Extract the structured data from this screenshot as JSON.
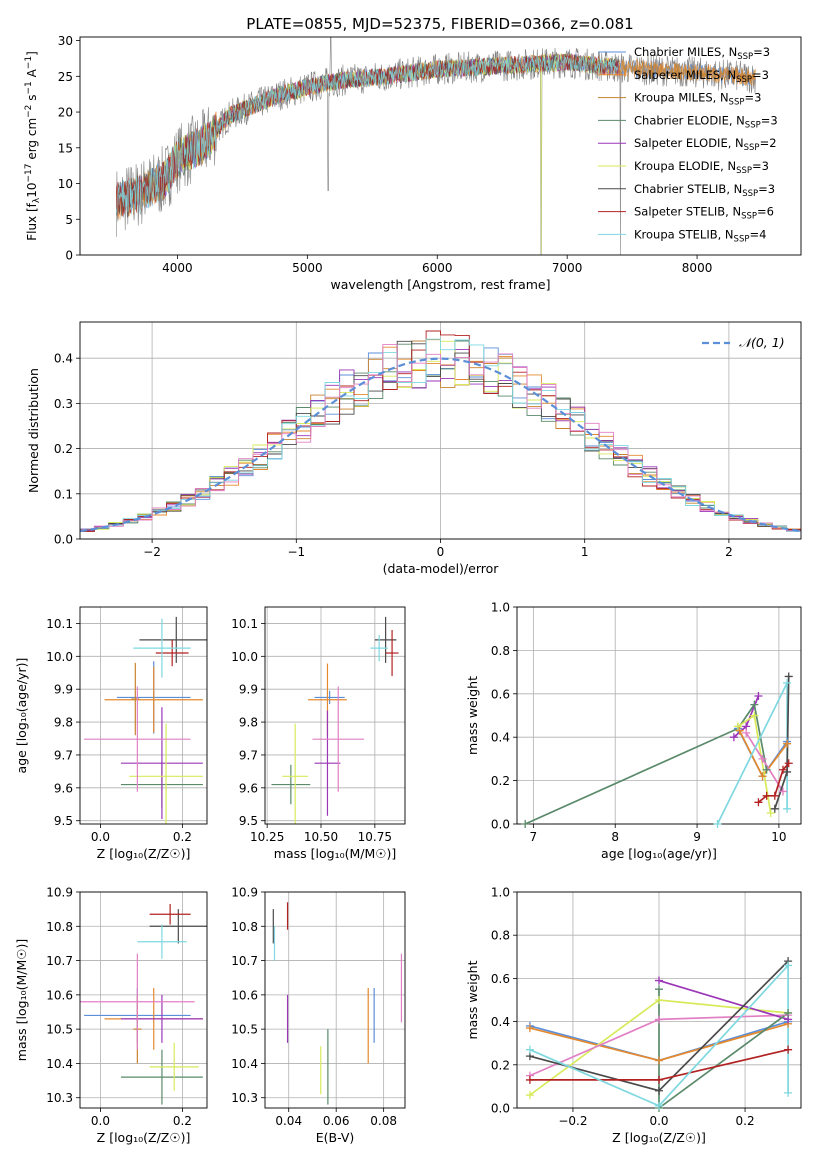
{
  "figure_title": "PLATE=0855, MJD=52375, FIBERID=0366, z=0.081",
  "colors": {
    "Chabrier MILES": "#5b8fd8",
    "Salpeter MILES": "#e4892e",
    "Kroupa MILES": "#c9822d",
    "Chabrier ELODIE": "#5a8a6a",
    "Salpeter ELODIE": "#9b36b7",
    "Kroupa ELODIE": "#d8ea5a",
    "Chabrier STELIB": "#4a4a4a",
    "Salpeter STELIB": "#b22222",
    "Kroupa STELIB": "#7fd8e0",
    "Pink": "#e27fc4",
    "data": "#808080",
    "normal": "#5b8fd8"
  },
  "chart_data": [
    {
      "id": "spectrum",
      "type": "line",
      "title": "PLATE=0855, MJD=52375, FIBERID=0366, z=0.081",
      "xlabel": "wavelength [Angstrom, rest frame]",
      "ylabel_main": "Flux [f",
      "ylabel_sub": "λ",
      "ylabel_mid": "10",
      "ylabel_sup1": "−17",
      "ylabel_mid2": " erg cm",
      "ylabel_sup2": "−2",
      "ylabel_mid3": " s",
      "ylabel_sup3": "−1",
      "ylabel_mid4": " A",
      "ylabel_sup4": "−1",
      "ylabel_end": "]",
      "xlim": [
        3250,
        8800
      ],
      "ylim": [
        0,
        30.5
      ],
      "xticks": [
        4000,
        5000,
        6000,
        7000,
        8000
      ],
      "yticks": [
        0,
        5,
        10,
        15,
        20,
        25,
        30
      ],
      "continuum_knots": [
        [
          3530,
          7.5
        ],
        [
          3700,
          8.5
        ],
        [
          3900,
          10.5
        ],
        [
          4000,
          13.5
        ],
        [
          4200,
          15.5
        ],
        [
          4400,
          19.5
        ],
        [
          4800,
          22.5
        ],
        [
          5200,
          24.3
        ],
        [
          5600,
          25.0
        ],
        [
          6000,
          26.0
        ],
        [
          6500,
          26.5
        ],
        [
          7000,
          27.0
        ],
        [
          7400,
          26.2
        ],
        [
          8000,
          25.5
        ],
        [
          8450,
          24.8
        ]
      ],
      "legend": [
        {
          "name": "Chabrier MILES",
          "nssp": "3"
        },
        {
          "name": "Salpeter MILES",
          "nssp": "3"
        },
        {
          "name": "Kroupa MILES",
          "nssp": "3"
        },
        {
          "name": "Chabrier ELODIE",
          "nssp": "3"
        },
        {
          "name": "Salpeter ELODIE",
          "nssp": "2"
        },
        {
          "name": "Kroupa ELODIE",
          "nssp": "3"
        },
        {
          "name": "Chabrier STELIB",
          "nssp": "3"
        },
        {
          "name": "Salpeter STELIB",
          "nssp": "6"
        },
        {
          "name": "Kroupa STELIB",
          "nssp": "4"
        }
      ],
      "legend_suffix": ", N",
      "legend_sub": "SSP",
      "legend_eq": "="
    },
    {
      "id": "residuals",
      "type": "line",
      "xlabel": "(data-model)/error",
      "ylabel": "Normed distribution",
      "xlim": [
        -2.5,
        2.5
      ],
      "ylim": [
        0,
        0.48
      ],
      "xticks": [
        -2,
        -1,
        0,
        1,
        2
      ],
      "yticks": [
        0.0,
        0.1,
        0.2,
        0.3,
        0.4
      ],
      "grid": true,
      "bin_width": 0.1,
      "legend": "𝒩(0, 1)",
      "legend_position": "top-right"
    },
    {
      "id": "age_vs_Z",
      "type": "scatter",
      "xlabel": "Z [log₁₀(Z/Z☉)]",
      "ylabel": "age  [log₁₀(age/yr)]",
      "xlim": [
        -0.05,
        0.26
      ],
      "ylim": [
        9.49,
        10.15
      ],
      "xticks": [
        0.0,
        0.2
      ],
      "yticks": [
        9.5,
        9.6,
        9.7,
        9.8,
        9.9,
        10.0,
        10.1
      ],
      "grid": true,
      "points": [
        {
          "series": "Chabrier MILES",
          "x": 0.13,
          "y": 9.875,
          "xerr": 0.09,
          "yerr": 0.11
        },
        {
          "series": "Salpeter MILES",
          "x": 0.13,
          "y": 9.868,
          "xerr": 0.12,
          "yerr": 0.1
        },
        {
          "series": "Kroupa MILES",
          "x": 0.085,
          "y": 9.87,
          "xerr": 0.01,
          "yerr": 0.11
        },
        {
          "series": "Chabrier ELODIE",
          "x": 0.15,
          "y": 9.61,
          "xerr": 0.1,
          "yerr": 0.07
        },
        {
          "series": "Salpeter ELODIE",
          "x": 0.15,
          "y": 9.675,
          "xerr": 0.1,
          "yerr": 0.17
        },
        {
          "series": "Kroupa ELODIE",
          "x": 0.16,
          "y": 9.635,
          "xerr": 0.09,
          "yerr": 0.16
        },
        {
          "series": "Chabrier STELIB",
          "x": 0.185,
          "y": 10.05,
          "xerr": 0.09,
          "yerr": 0.07
        },
        {
          "series": "Salpeter STELIB",
          "x": 0.175,
          "y": 10.01,
          "xerr": 0.04,
          "yerr": 0.04
        },
        {
          "series": "Kroupa STELIB",
          "x": 0.15,
          "y": 10.025,
          "xerr": 0.07,
          "yerr": 0.09
        },
        {
          "series": "Pink",
          "x": 0.09,
          "y": 9.748,
          "xerr": 0.13,
          "yerr": 0.16
        }
      ]
    },
    {
      "id": "age_vs_mass",
      "type": "scatter",
      "xlabel": "mass [log₁₀(M/M☉)]",
      "xlim": [
        10.24,
        10.89
      ],
      "ylim": [
        9.49,
        10.15
      ],
      "xticks": [
        10.25,
        10.5,
        10.75
      ],
      "yticks": [
        9.5,
        9.6,
        9.7,
        9.8,
        9.9,
        10.0,
        10.1
      ],
      "grid": true,
      "points": [
        {
          "series": "Chabrier MILES",
          "x": 10.54,
          "y": 9.875,
          "xerr": 0.07,
          "yerr": 0.02
        },
        {
          "series": "Salpeter MILES",
          "x": 10.53,
          "y": 9.868,
          "xerr": 0.09,
          "yerr": 0.11
        },
        {
          "series": "Chabrier ELODIE",
          "x": 10.36,
          "y": 9.61,
          "xerr": 0.09,
          "yerr": 0.06
        },
        {
          "series": "Salpeter ELODIE",
          "x": 10.53,
          "y": 9.675,
          "xerr": 0.06,
          "yerr": 0.16
        },
        {
          "series": "Kroupa ELODIE",
          "x": 10.38,
          "y": 9.635,
          "xerr": 0.06,
          "yerr": 0.16
        },
        {
          "series": "Chabrier STELIB",
          "x": 10.8,
          "y": 10.05,
          "xerr": 0.05,
          "yerr": 0.07
        },
        {
          "series": "Salpeter STELIB",
          "x": 10.83,
          "y": 10.01,
          "xerr": 0.03,
          "yerr": 0.07
        },
        {
          "series": "Kroupa STELIB",
          "x": 10.77,
          "y": 10.025,
          "xerr": 0.04,
          "yerr": 0.04
        },
        {
          "series": "Pink",
          "x": 10.58,
          "y": 9.748,
          "xerr": 0.12,
          "yerr": 0.16
        }
      ]
    },
    {
      "id": "weight_vs_age",
      "type": "line",
      "xlabel": "age  [log₁₀(age/yr)]",
      "ylabel": "mass weight",
      "xlim": [
        6.8,
        10.27
      ],
      "ylim": [
        0,
        1.0
      ],
      "xticks": [
        7,
        8,
        9,
        10
      ],
      "yticks": [
        0.0,
        0.2,
        0.4,
        0.6,
        0.8,
        1.0
      ],
      "grid": true,
      "series": [
        {
          "name": "Chabrier ELODIE",
          "x": [
            6.9,
            9.5,
            9.7,
            9.85
          ],
          "y": [
            0.0,
            0.44,
            0.55,
            0.25
          ]
        },
        {
          "name": "Salpeter ELODIE",
          "x": [
            9.45,
            9.6,
            9.75
          ],
          "y": [
            0.4,
            0.45,
            0.59
          ]
        },
        {
          "name": "Chabrier MILES",
          "x": [
            9.5,
            9.8,
            10.1
          ],
          "y": [
            0.44,
            0.22,
            0.38
          ]
        },
        {
          "name": "Salpeter MILES",
          "x": [
            9.52,
            9.8,
            10.1
          ],
          "y": [
            0.43,
            0.22,
            0.37
          ]
        },
        {
          "name": "Kroupa ELODIE",
          "x": [
            9.5,
            9.7,
            9.9
          ],
          "y": [
            0.45,
            0.5,
            0.05
          ]
        },
        {
          "name": "Pink",
          "x": [
            9.6,
            9.8,
            10.05
          ],
          "y": [
            0.42,
            0.3,
            0.15
          ]
        },
        {
          "name": "Kroupa STELIB",
          "x": [
            9.25,
            10.1,
            10.1
          ],
          "y": [
            0.0,
            0.65,
            0.07
          ]
        },
        {
          "name": "Chabrier STELIB",
          "x": [
            9.95,
            10.1,
            10.12
          ],
          "y": [
            0.07,
            0.24,
            0.68
          ]
        },
        {
          "name": "Salpeter STELIB",
          "x": [
            9.75,
            9.85,
            9.95,
            10.05,
            10.12
          ],
          "y": [
            0.1,
            0.13,
            0.13,
            0.25,
            0.28
          ]
        }
      ]
    },
    {
      "id": "mass_vs_Z",
      "type": "scatter",
      "xlabel": "Z [log₁₀(Z/Z☉)]",
      "ylabel": "mass [log₁₀(M/M☉)]",
      "xlim": [
        -0.05,
        0.26
      ],
      "ylim": [
        10.27,
        10.9
      ],
      "xticks": [
        0.0,
        0.2
      ],
      "yticks": [
        10.3,
        10.4,
        10.5,
        10.6,
        10.7,
        10.8,
        10.9
      ],
      "grid": true,
      "points": [
        {
          "series": "Chabrier MILES",
          "x": 0.09,
          "y": 10.54,
          "xerr": 0.13,
          "yerr": 0.08
        },
        {
          "series": "Salpeter MILES",
          "x": 0.13,
          "y": 10.53,
          "xerr": 0.12,
          "yerr": 0.09
        },
        {
          "series": "Kroupa MILES",
          "x": 0.09,
          "y": 10.5,
          "xerr": 0.01,
          "yerr": 0.1
        },
        {
          "series": "Chabrier ELODIE",
          "x": 0.15,
          "y": 10.36,
          "xerr": 0.1,
          "yerr": 0.08
        },
        {
          "series": "Salpeter ELODIE",
          "x": 0.15,
          "y": 10.53,
          "xerr": 0.1,
          "yerr": 0.07
        },
        {
          "series": "Kroupa ELODIE",
          "x": 0.18,
          "y": 10.39,
          "xerr": 0.06,
          "yerr": 0.07
        },
        {
          "series": "Chabrier STELIB",
          "x": 0.19,
          "y": 10.8,
          "xerr": 0.07,
          "yerr": 0.05
        },
        {
          "series": "Salpeter STELIB",
          "x": 0.17,
          "y": 10.835,
          "xerr": 0.05,
          "yerr": 0.03
        },
        {
          "series": "Kroupa STELIB",
          "x": 0.15,
          "y": 10.755,
          "xerr": 0.06,
          "yerr": 0.05
        },
        {
          "series": "Pink",
          "x": 0.09,
          "y": 10.58,
          "xerr": 0.14,
          "yerr": 0.14
        }
      ]
    },
    {
      "id": "mass_vs_ebv",
      "type": "scatter",
      "xlabel": "E(B-V)",
      "xlim": [
        0.03,
        0.089
      ],
      "ylim": [
        10.27,
        10.9
      ],
      "xticks": [
        0.04,
        0.06,
        0.08
      ],
      "yticks": [
        10.3,
        10.4,
        10.5,
        10.6,
        10.7,
        10.8,
        10.9
      ],
      "grid": true,
      "points": [
        {
          "series": "Chabrier MILES",
          "x": 0.076,
          "y": 10.54,
          "yerr": 0.08
        },
        {
          "series": "Salpeter MILES",
          "x": 0.0735,
          "y": 10.51,
          "yerr": 0.11
        },
        {
          "series": "Chabrier ELODIE",
          "x": 0.0565,
          "y": 10.39,
          "yerr": 0.11
        },
        {
          "series": "Salpeter ELODIE",
          "x": 0.0395,
          "y": 10.53,
          "yerr": 0.07
        },
        {
          "series": "Kroupa ELODIE",
          "x": 0.0535,
          "y": 10.38,
          "yerr": 0.07
        },
        {
          "series": "Chabrier STELIB",
          "x": 0.0335,
          "y": 10.8,
          "yerr": 0.05
        },
        {
          "series": "Salpeter STELIB",
          "x": 0.0395,
          "y": 10.83,
          "yerr": 0.04
        },
        {
          "series": "Kroupa STELIB",
          "x": 0.034,
          "y": 10.75,
          "yerr": 0.05
        },
        {
          "series": "Pink",
          "x": 0.0875,
          "y": 10.62,
          "yerr": 0.1
        }
      ]
    },
    {
      "id": "weight_vs_Z",
      "type": "line",
      "xlabel": "Z [log₁₀(Z/Z☉)]",
      "ylabel": "mass weight",
      "xlim": [
        -0.33,
        0.33
      ],
      "ylim": [
        0,
        1.0
      ],
      "xticks": [
        -0.2,
        0.0,
        0.2
      ],
      "yticks": [
        0.0,
        0.2,
        0.4,
        0.6,
        0.8,
        1.0
      ],
      "grid": true,
      "series": [
        {
          "name": "Chabrier MILES",
          "x": [
            -0.3,
            0.0,
            0.3
          ],
          "y": [
            0.38,
            0.22,
            0.4
          ]
        },
        {
          "name": "Salpeter MILES",
          "x": [
            -0.3,
            0.0,
            0.3
          ],
          "y": [
            0.37,
            0.22,
            0.39
          ]
        },
        {
          "name": "Kroupa ELODIE",
          "x": [
            -0.3,
            0.0,
            0.3
          ],
          "y": [
            0.06,
            0.5,
            0.44
          ]
        },
        {
          "name": "Pink",
          "x": [
            -0.3,
            0.0,
            0.3
          ],
          "y": [
            0.15,
            0.41,
            0.43
          ]
        },
        {
          "name": "Salpeter ELODIE",
          "x": [
            0.0,
            0.3
          ],
          "y": [
            0.59,
            0.41
          ]
        },
        {
          "name": "Chabrier ELODIE",
          "x": [
            0.0,
            0.0,
            0.3
          ],
          "y": [
            0.55,
            0.0,
            0.44
          ]
        },
        {
          "name": "Chabrier STELIB",
          "x": [
            -0.3,
            0.0,
            0.3
          ],
          "y": [
            0.24,
            0.08,
            0.68
          ]
        },
        {
          "name": "Salpeter STELIB",
          "x": [
            -0.3,
            0.0,
            0.3
          ],
          "y": [
            0.13,
            0.13,
            0.27
          ]
        },
        {
          "name": "Kroupa STELIB",
          "x": [
            -0.3,
            0.0,
            0.3,
            0.3
          ],
          "y": [
            0.27,
            0.01,
            0.66,
            0.07
          ]
        }
      ]
    }
  ]
}
